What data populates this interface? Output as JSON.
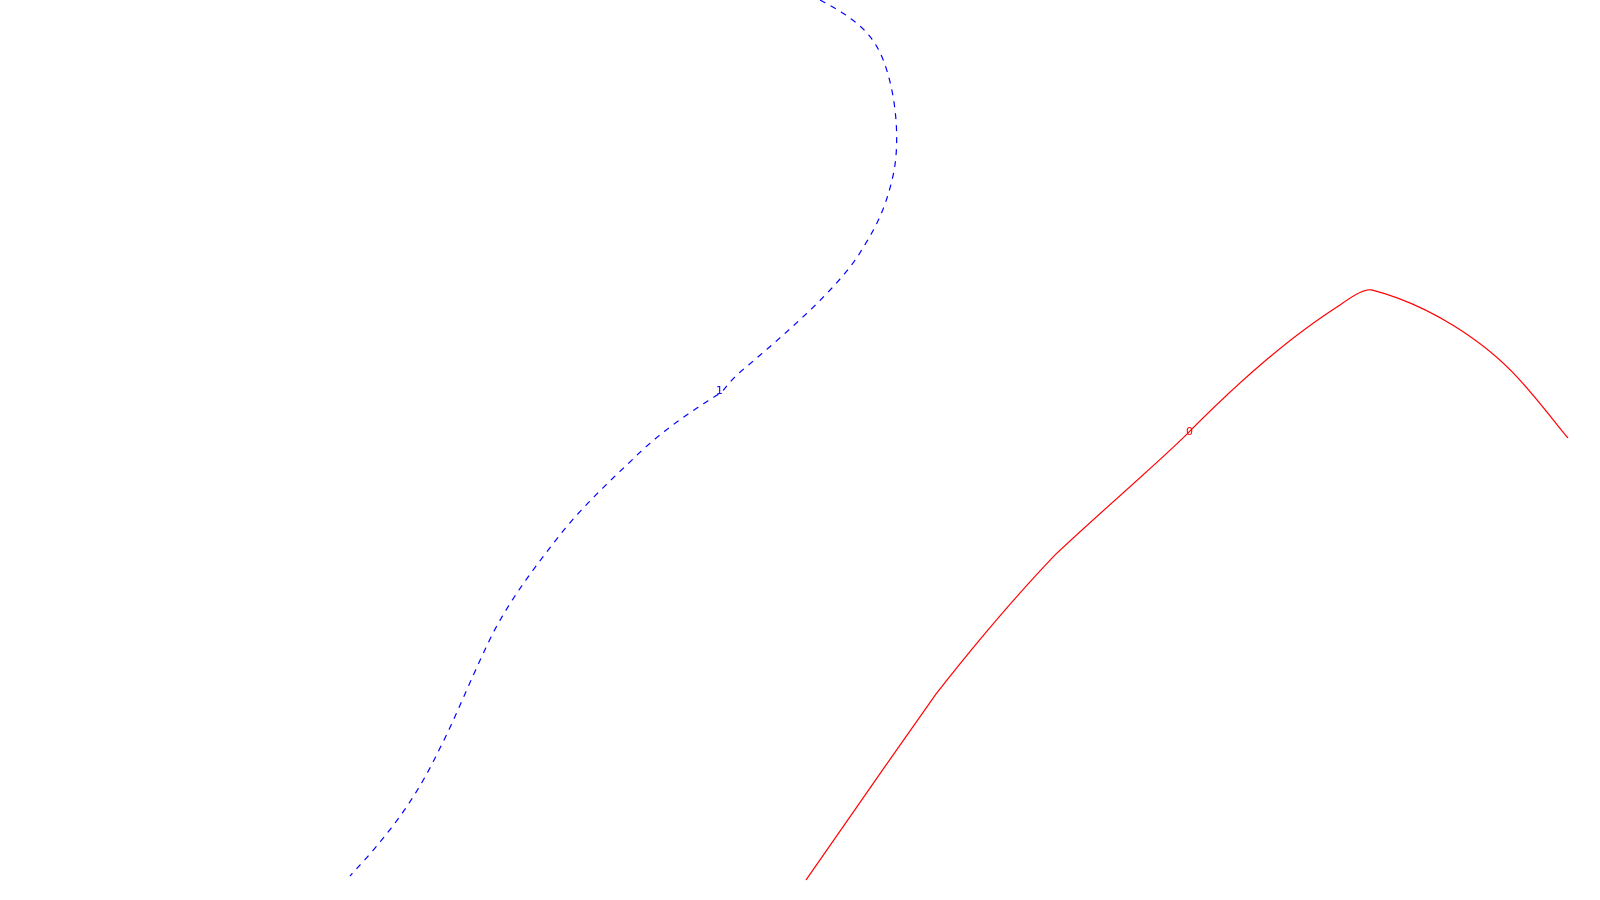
{
  "contours": [
    {
      "level_label": "1",
      "color": "#0000ff",
      "line_style": "dashed"
    },
    {
      "level_label": "0",
      "color": "#ff0000",
      "line_style": "solid"
    }
  ]
}
